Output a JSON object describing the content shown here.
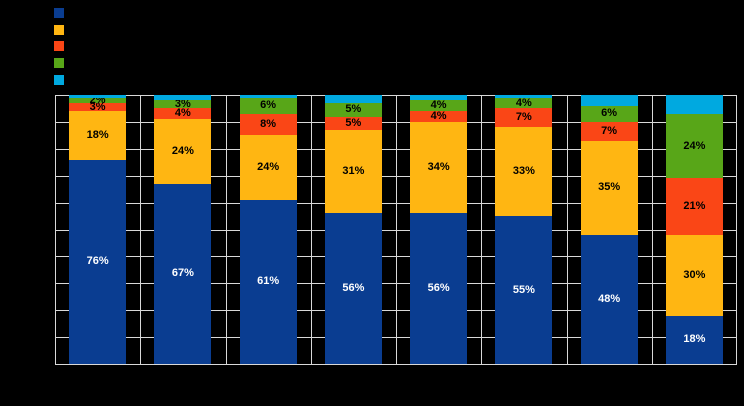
{
  "page": {
    "background_color": "#000000"
  },
  "chart_data": {
    "type": "bar",
    "stacked": true,
    "orientation": "vertical",
    "title": "",
    "xlabel": "",
    "ylabel": "",
    "ylim": [
      0,
      100
    ],
    "grid": true,
    "gridline_step_pct": 10,
    "gridline_color": "#D9D9D9",
    "background_color": "#000000",
    "legend_position": "top-left",
    "categories": [
      "",
      "",
      "",
      "",
      "",
      "",
      "",
      ""
    ],
    "series": [
      {
        "id": "series-1-navy",
        "name": "",
        "color": "#0A3D91",
        "label_color": "#FFFFFF",
        "values": [
          76,
          67,
          61,
          56,
          56,
          55,
          48,
          18
        ],
        "labels": [
          "76%",
          "67%",
          "61%",
          "56%",
          "56%",
          "55%",
          "48%",
          "18%"
        ]
      },
      {
        "id": "series-2-amber",
        "name": "",
        "color": "#FFB612",
        "label_color": "#000000",
        "values": [
          18,
          24,
          24,
          31,
          34,
          33,
          35,
          30
        ],
        "labels": [
          "18%",
          "24%",
          "24%",
          "31%",
          "34%",
          "33%",
          "35%",
          "30%"
        ]
      },
      {
        "id": "series-3-orange-red",
        "name": "",
        "color": "#FA4616",
        "label_color": "#000000",
        "values": [
          3,
          4,
          8,
          5,
          4,
          7,
          7,
          21
        ],
        "labels": [
          "3%",
          "4%",
          "8%",
          "5%",
          "4%",
          "7%",
          "7%",
          "21%"
        ]
      },
      {
        "id": "series-4-green",
        "name": "",
        "color": "#58A618",
        "label_color": "#000000",
        "values": [
          2,
          3,
          6,
          5,
          4,
          4,
          6,
          24
        ],
        "labels": [
          "2%",
          "3%",
          "6%",
          "5%",
          "4%",
          "4%",
          "6%",
          "24%"
        ]
      },
      {
        "id": "series-5-cyan",
        "name": "",
        "color": "#00A9E0",
        "label_color": "#000000",
        "values": [
          1,
          2,
          1,
          3,
          2,
          1,
          4,
          7
        ],
        "labels": [
          "",
          "",
          "",
          "",
          "",
          "",
          "",
          ""
        ]
      }
    ],
    "legend": {
      "items": [
        {
          "label": "",
          "color": "#0A3D91"
        },
        {
          "label": "",
          "color": "#FFB612"
        },
        {
          "label": "",
          "color": "#FA4616"
        },
        {
          "label": "",
          "color": "#58A618"
        },
        {
          "label": "",
          "color": "#00A9E0"
        }
      ]
    }
  }
}
